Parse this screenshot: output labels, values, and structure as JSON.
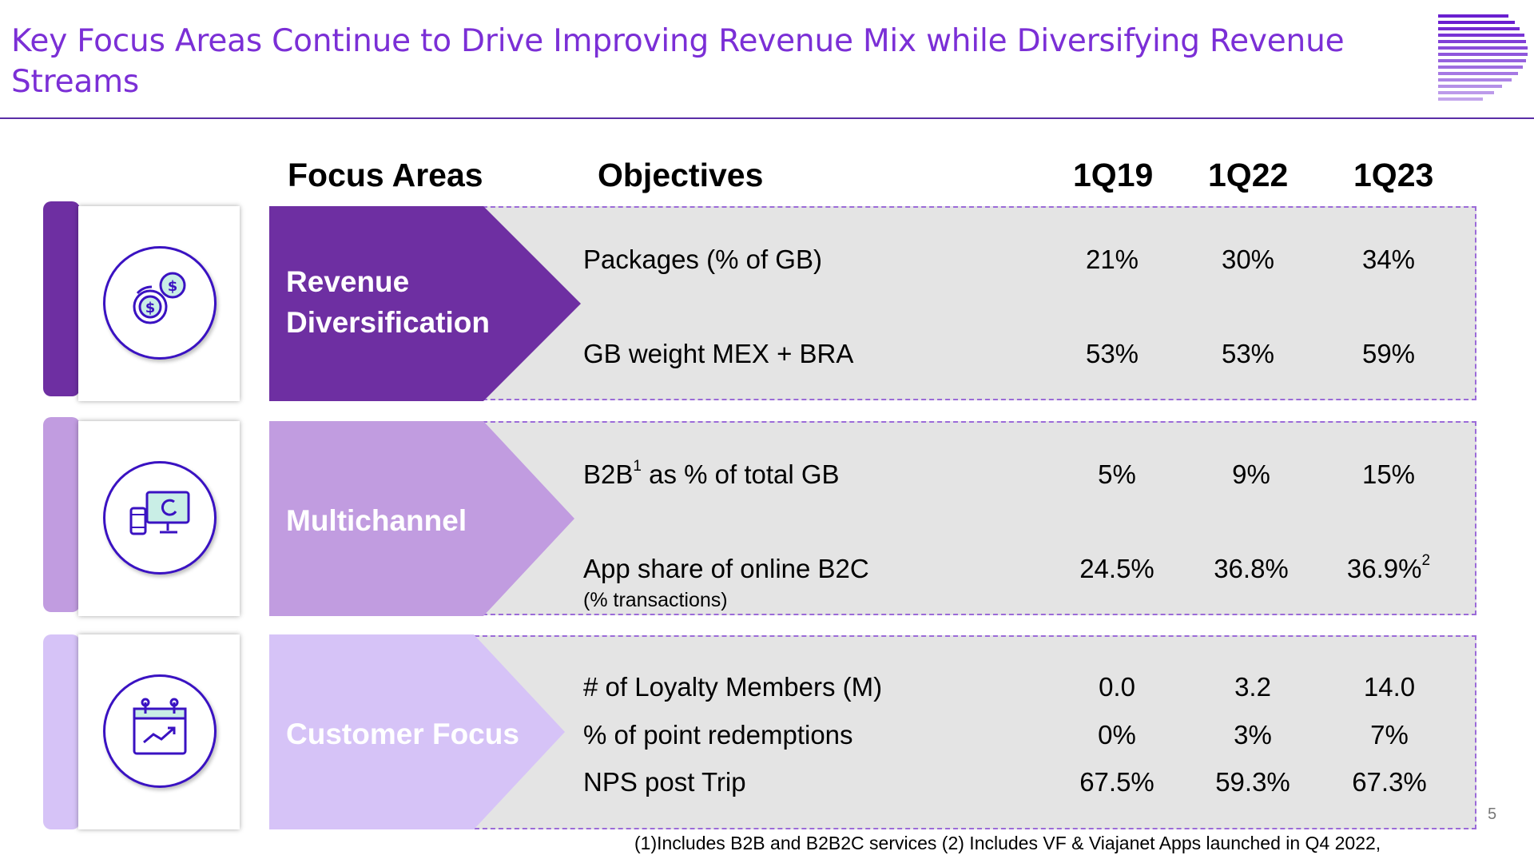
{
  "title": "Key Focus Areas Continue to Drive Improving Revenue Mix while Diversifying Revenue Streams",
  "headers": {
    "focus": "Focus Areas",
    "objectives": "Objectives",
    "p1": "1Q19",
    "p2": "1Q22",
    "p3": "1Q23"
  },
  "colors": {
    "accent": "#7b2fd6",
    "revenue": "#6e2fa2",
    "multichannel": "#c19ce0",
    "customer": "#d6c3f7"
  },
  "areas": [
    {
      "label_line1": "Revenue",
      "label_line2": "Diversification",
      "icon": "coins-dollar-icon",
      "rows": [
        {
          "objective": "Packages (% of GB)",
          "v1": "21%",
          "v2": "30%",
          "v3": "34%"
        },
        {
          "objective": "GB weight MEX + BRA",
          "v1": "53%",
          "v2": "53%",
          "v3": "59%"
        }
      ]
    },
    {
      "label": "Multichannel",
      "icon": "devices-icon",
      "rows": [
        {
          "objective_pre": "B2B",
          "objective_sup": "1",
          "objective_post": " as % of total GB",
          "v1": "5%",
          "v2": "9%",
          "v3": "15%"
        },
        {
          "objective": "App share of online B2C",
          "objective_sub": "(% transactions)",
          "v1": "24.5%",
          "v2": "36.8%",
          "v3": "36.9%",
          "v3_sup": "2"
        }
      ]
    },
    {
      "label": "Customer Focus",
      "icon": "calendar-growth-icon",
      "rows": [
        {
          "objective": "# of Loyalty Members (M)",
          "v1": "0.0",
          "v2": "3.2",
          "v3": "14.0"
        },
        {
          "objective": "% of point redemptions",
          "v1": "0%",
          "v2": "3%",
          "v3": "7%"
        },
        {
          "objective": "NPS post Trip",
          "v1": "67.5%",
          "v2": "59.3%",
          "v3": "67.3%"
        }
      ]
    }
  ],
  "page_number": "5",
  "footnote": "(1)Includes B2B and B2B2C services (2) Includes VF & Viajanet Apps launched in Q4 2022,"
}
